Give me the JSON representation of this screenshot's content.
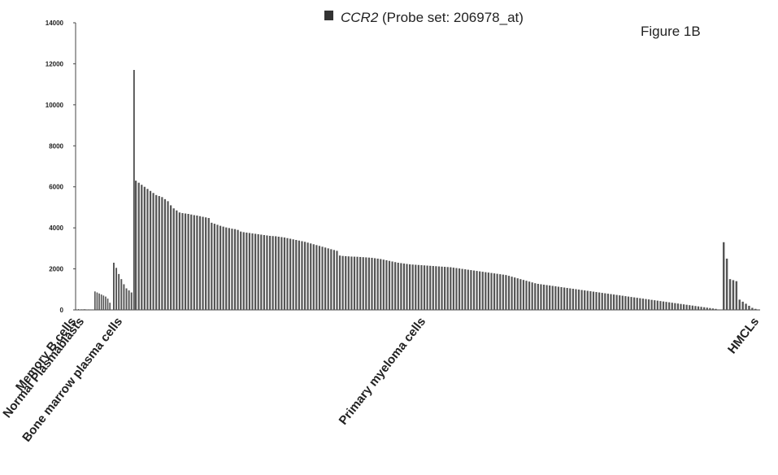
{
  "figure_label": "Figure 1B",
  "legend": {
    "gene": "CCR2",
    "probe_text": " (Probe set: 206978_at)",
    "swatch_color": "#333333"
  },
  "chart_data": {
    "type": "bar",
    "ylim": [
      0,
      14000
    ],
    "yticks": [
      0,
      2000,
      4000,
      6000,
      8000,
      10000,
      12000,
      14000
    ],
    "ytick_labels": [
      "0",
      "2000",
      "4000",
      "6000",
      "8000",
      "10000",
      "12000",
      "14000"
    ],
    "bar_color": "#555555",
    "groups": [
      {
        "label": "Memory B cells",
        "values": [
          40,
          20,
          30,
          25,
          35,
          30,
          20,
          25
        ]
      },
      {
        "label": "Normal Plasmablasts",
        "values": [
          900,
          850,
          800,
          750,
          700,
          650,
          550,
          350
        ]
      },
      {
        "label": "Bone marrow plasma cells",
        "values": [
          2300,
          2050,
          1750,
          1500,
          1250,
          1050,
          950,
          850,
          11700
        ]
      },
      {
        "label": "Primary myeloma cells",
        "values": [
          6300,
          6200,
          6100,
          6000,
          5900,
          5800,
          5700,
          5600,
          5550,
          5500,
          5400,
          5300,
          5100,
          4950,
          4850,
          4750,
          4720,
          4700,
          4680,
          4650,
          4620,
          4600,
          4570,
          4540,
          4510,
          4480,
          4250,
          4200,
          4150,
          4100,
          4060,
          4020,
          3990,
          3960,
          3940,
          3900,
          3820,
          3790,
          3770,
          3750,
          3730,
          3710,
          3690,
          3670,
          3650,
          3630,
          3610,
          3600,
          3590,
          3570,
          3550,
          3530,
          3500,
          3470,
          3440,
          3410,
          3380,
          3350,
          3320,
          3280,
          3240,
          3200,
          3160,
          3120,
          3080,
          3040,
          3000,
          2960,
          2920,
          2880,
          2650,
          2630,
          2620,
          2610,
          2600,
          2595,
          2590,
          2580,
          2570,
          2560,
          2550,
          2540,
          2520,
          2500,
          2480,
          2450,
          2420,
          2390,
          2360,
          2330,
          2300,
          2280,
          2260,
          2240,
          2220,
          2210,
          2200,
          2190,
          2180,
          2170,
          2160,
          2150,
          2140,
          2130,
          2120,
          2110,
          2100,
          2090,
          2080,
          2060,
          2040,
          2020,
          2000,
          1980,
          1960,
          1940,
          1920,
          1900,
          1880,
          1860,
          1840,
          1820,
          1800,
          1780,
          1760,
          1740,
          1720,
          1700,
          1660,
          1620,
          1580,
          1540,
          1500,
          1460,
          1420,
          1380,
          1340,
          1300,
          1270,
          1250,
          1230,
          1210,
          1190,
          1170,
          1150,
          1130,
          1110,
          1090,
          1070,
          1050,
          1030,
          1010,
          990,
          970,
          950,
          930,
          910,
          890,
          870,
          850,
          830,
          810,
          790,
          770,
          750,
          730,
          710,
          690,
          670,
          650,
          630,
          610,
          590,
          570,
          550,
          530,
          510,
          490,
          470,
          450,
          430,
          410,
          390,
          370,
          350,
          330,
          310,
          290,
          270,
          250,
          230,
          210,
          190,
          170,
          150,
          130,
          110,
          90,
          70,
          50
        ]
      },
      {
        "label": "HMCLs",
        "values": [
          3300,
          2500,
          1500,
          1450,
          1400,
          500,
          400,
          300,
          200,
          100,
          50
        ]
      }
    ]
  }
}
